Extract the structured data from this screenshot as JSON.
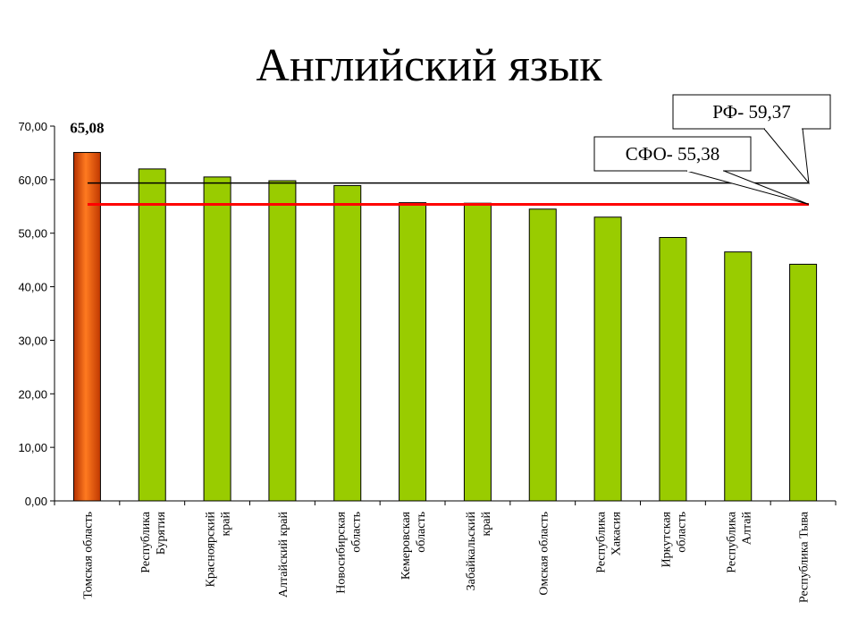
{
  "chart_data": {
    "type": "bar",
    "title": "Английский язык",
    "categories": [
      [
        "Томская область"
      ],
      [
        "Республика",
        "Бурятия"
      ],
      [
        "Красноярский",
        "край"
      ],
      [
        "Алтайский край"
      ],
      [
        "Новосибирская",
        "область"
      ],
      [
        "Кемеровская",
        "область"
      ],
      [
        "Забайкальский",
        "край"
      ],
      [
        "Омская область"
      ],
      [
        "Республика",
        "Хакасия"
      ],
      [
        "Иркутская",
        "область"
      ],
      [
        "Республика",
        "Алтай"
      ],
      [
        "Республика Тыва"
      ]
    ],
    "values": [
      65.08,
      62.0,
      60.5,
      59.8,
      58.9,
      55.7,
      55.6,
      54.5,
      53.0,
      49.2,
      46.5,
      44.2
    ],
    "highlight_index": 0,
    "data_labels": [
      {
        "index": 0,
        "text": "65,08"
      }
    ],
    "ylim": [
      0,
      70
    ],
    "yticks": [
      {
        "value": 0,
        "label": "0,00"
      },
      {
        "value": 10,
        "label": "10,00"
      },
      {
        "value": 20,
        "label": "20,00"
      },
      {
        "value": 30,
        "label": "30,00"
      },
      {
        "value": 40,
        "label": "40,00"
      },
      {
        "value": 50,
        "label": "50,00"
      },
      {
        "value": 60,
        "label": "60,00"
      },
      {
        "value": 70,
        "label": "70,00"
      }
    ],
    "reference_lines": [
      {
        "value": 59.37,
        "label": "РФ- 59,37",
        "color": "#000000"
      },
      {
        "value": 55.38,
        "label": "СФО- 55,38",
        "color": "#ff0000"
      }
    ],
    "colors": {
      "bar": "#99cc00",
      "highlight_bar": "#e85a10",
      "highlight_bar_dark": "#b33000"
    },
    "xlabel": "",
    "ylabel": "",
    "grid": false,
    "legend": "none"
  }
}
